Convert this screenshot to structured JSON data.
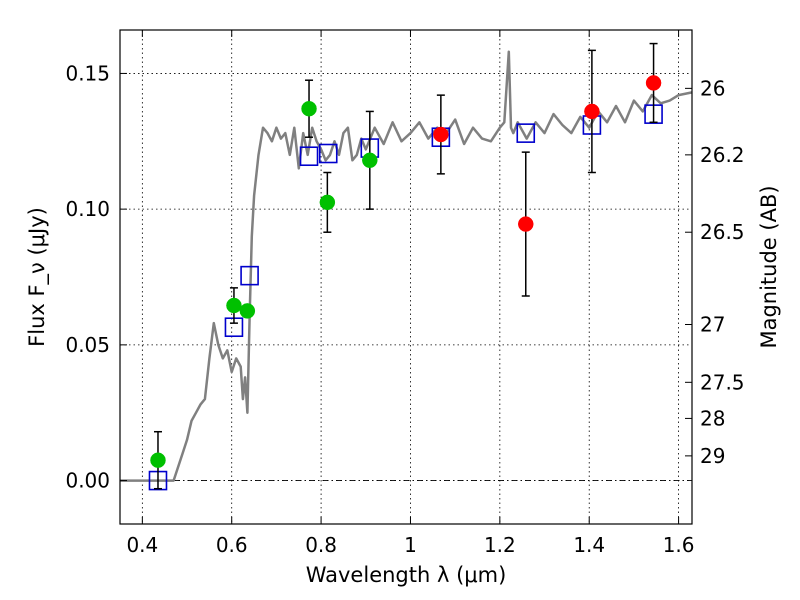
{
  "chart_data": {
    "type": "scatter",
    "xlabel": "Wavelength λ (μm)",
    "ylabel": "Flux F_ν (μJy)",
    "y2label": "Magnitude (AB)",
    "xlim": [
      0.35,
      1.63
    ],
    "ylim": [
      -0.016,
      0.166
    ],
    "grid": true,
    "x_ticks": [
      0.4,
      0.6,
      0.8,
      1.0,
      1.2,
      1.4,
      1.6
    ],
    "x_tick_labels": [
      "0.4",
      "0.6",
      "0.8",
      "1",
      "1.2",
      "1.4",
      "1.6"
    ],
    "y_ticks": [
      0.0,
      0.05,
      0.1,
      0.15
    ],
    "y_tick_labels": [
      "0.00",
      "0.05",
      "0.10",
      "0.15"
    ],
    "y2_ticks": [
      {
        "label": "26",
        "flux": 0.1445
      },
      {
        "label": "26.2",
        "flux": 0.12
      },
      {
        "label": "26.5",
        "flux": 0.0915
      },
      {
        "label": "27",
        "flux": 0.0575
      },
      {
        "label": "27.5",
        "flux": 0.0362
      },
      {
        "label": "28",
        "flux": 0.0229
      },
      {
        "label": "29",
        "flux": 0.0091
      }
    ],
    "model_spectrum": {
      "name": "model SED",
      "color": "#808080",
      "x": [
        0.35,
        0.47,
        0.49,
        0.5,
        0.51,
        0.52,
        0.53,
        0.54,
        0.55,
        0.56,
        0.57,
        0.58,
        0.59,
        0.6,
        0.61,
        0.62,
        0.625,
        0.63,
        0.635,
        0.64,
        0.645,
        0.65,
        0.66,
        0.67,
        0.68,
        0.69,
        0.7,
        0.71,
        0.72,
        0.73,
        0.74,
        0.75,
        0.76,
        0.77,
        0.78,
        0.79,
        0.8,
        0.81,
        0.82,
        0.83,
        0.84,
        0.85,
        0.86,
        0.87,
        0.88,
        0.89,
        0.9,
        0.92,
        0.94,
        0.96,
        0.98,
        1.0,
        1.02,
        1.04,
        1.06,
        1.08,
        1.1,
        1.12,
        1.14,
        1.16,
        1.18,
        1.2,
        1.21,
        1.22,
        1.225,
        1.23,
        1.24,
        1.26,
        1.28,
        1.3,
        1.32,
        1.34,
        1.36,
        1.38,
        1.4,
        1.42,
        1.44,
        1.46,
        1.48,
        1.5,
        1.52,
        1.54,
        1.56,
        1.58,
        1.6,
        1.63
      ],
      "y": [
        0.0,
        0.0,
        0.01,
        0.015,
        0.022,
        0.025,
        0.028,
        0.03,
        0.045,
        0.058,
        0.05,
        0.045,
        0.048,
        0.04,
        0.045,
        0.042,
        0.03,
        0.038,
        0.025,
        0.06,
        0.09,
        0.105,
        0.12,
        0.13,
        0.128,
        0.125,
        0.13,
        0.126,
        0.128,
        0.12,
        0.13,
        0.115,
        0.128,
        0.12,
        0.13,
        0.125,
        0.122,
        0.118,
        0.12,
        0.125,
        0.12,
        0.128,
        0.13,
        0.118,
        0.12,
        0.126,
        0.122,
        0.13,
        0.124,
        0.132,
        0.125,
        0.128,
        0.132,
        0.126,
        0.13,
        0.128,
        0.133,
        0.124,
        0.13,
        0.126,
        0.125,
        0.13,
        0.132,
        0.158,
        0.13,
        0.128,
        0.132,
        0.126,
        0.132,
        0.128,
        0.135,
        0.131,
        0.128,
        0.134,
        0.13,
        0.136,
        0.132,
        0.138,
        0.132,
        0.14,
        0.136,
        0.142,
        0.139,
        0.14,
        0.142,
        0.143
      ]
    },
    "series": [
      {
        "name": "green points",
        "color": "#00c000",
        "marker": "circle",
        "points": [
          {
            "x": 0.435,
            "y": 0.0075,
            "err": 0.0105
          },
          {
            "x": 0.605,
            "y": 0.0645,
            "err": 0.0065
          },
          {
            "x": 0.635,
            "y": 0.0625,
            "err": 0.0
          },
          {
            "x": 0.773,
            "y": 0.137,
            "err": 0.0105
          },
          {
            "x": 0.814,
            "y": 0.1025,
            "err": 0.011
          },
          {
            "x": 0.909,
            "y": 0.118,
            "err": 0.018
          }
        ]
      },
      {
        "name": "red points",
        "color": "#ff0000",
        "marker": "circle",
        "points": [
          {
            "x": 1.068,
            "y": 0.1275,
            "err": 0.0145
          },
          {
            "x": 1.258,
            "y": 0.0945,
            "err": 0.0265
          },
          {
            "x": 1.406,
            "y": 0.136,
            "err": 0.0225
          },
          {
            "x": 1.544,
            "y": 0.1465,
            "err": 0.0145
          }
        ]
      },
      {
        "name": "model photometry",
        "color": "#0000cc",
        "marker": "open-square",
        "points": [
          {
            "x": 0.435,
            "y": 0.0
          },
          {
            "x": 0.605,
            "y": 0.0565
          },
          {
            "x": 0.64,
            "y": 0.0755
          },
          {
            "x": 0.773,
            "y": 0.1195
          },
          {
            "x": 0.816,
            "y": 0.1205
          },
          {
            "x": 0.909,
            "y": 0.1225
          },
          {
            "x": 1.068,
            "y": 0.1265
          },
          {
            "x": 1.258,
            "y": 0.128
          },
          {
            "x": 1.406,
            "y": 0.131
          },
          {
            "x": 1.544,
            "y": 0.135
          }
        ]
      }
    ]
  }
}
